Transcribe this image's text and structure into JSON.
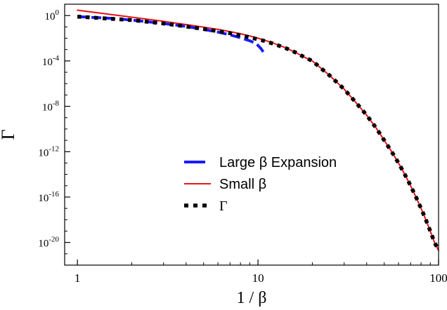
{
  "chart_data": {
    "type": "line",
    "xlabel": "1 / β",
    "ylabel": "Γ",
    "x_scale": "log",
    "y_scale": "log",
    "xlim": [
      0.85,
      100
    ],
    "ylim": [
      1e-22,
      10.0
    ],
    "grid": false,
    "legend_position": "center-right",
    "x_ticks": [
      {
        "value": 1,
        "label": "1"
      },
      {
        "value": 10,
        "label": "10"
      },
      {
        "value": 100,
        "label": "100"
      }
    ],
    "y_ticks": [
      {
        "value": 1,
        "base": "10",
        "exp": "0"
      },
      {
        "value": 0.0001,
        "base": "10",
        "exp": "-4"
      },
      {
        "value": 1e-08,
        "base": "10",
        "exp": "-8"
      },
      {
        "value": 1e-12,
        "base": "10",
        "exp": "-12"
      },
      {
        "value": 1e-16,
        "base": "10",
        "exp": "-16"
      },
      {
        "value": 1e-20,
        "base": "10",
        "exp": "-20"
      }
    ],
    "series": [
      {
        "name": "Large β Expansion",
        "color": "#1a1aff",
        "style": "dashed",
        "x": [
          1,
          1.5,
          2,
          3,
          4,
          5,
          6,
          7,
          8,
          9,
          9.8,
          10.4,
          10.9
        ],
        "y": [
          0.8,
          0.58,
          0.4,
          0.2,
          0.11,
          0.06,
          0.035,
          0.02,
          0.011,
          0.006,
          0.0033,
          0.0012,
          0.0004
        ]
      },
      {
        "name": "Small β",
        "color": "#e8141b",
        "style": "solid",
        "x": [
          1,
          2,
          3,
          4,
          5,
          6,
          7,
          8,
          9,
          10,
          11,
          12,
          14,
          16,
          18,
          20,
          25,
          30,
          35,
          40,
          45,
          50,
          55,
          60,
          65,
          70,
          75,
          80,
          85,
          90,
          95,
          100
        ],
        "y": [
          3,
          0.72,
          0.31,
          0.16,
          0.095,
          0.06,
          0.038,
          0.025,
          0.016,
          0.01,
          0.0063,
          0.004,
          0.0016,
          0.0006,
          0.00022,
          0.0001,
          5e-06,
          3.2e-07,
          2e-08,
          1.6e-09,
          1.3e-10,
          1e-11,
          1e-12,
          1e-13,
          1e-14,
          1e-15,
          1e-16,
          1e-17,
          1e-18,
          1e-19,
          1e-20,
          2e-21
        ]
      },
      {
        "name": "Γ",
        "color": "#000000",
        "style": "dotted",
        "x": [
          1,
          2,
          3,
          4,
          5,
          6,
          7,
          8,
          9,
          10,
          11,
          12,
          14,
          16,
          18,
          20,
          25,
          30,
          35,
          40,
          45,
          50,
          55,
          60,
          65,
          70,
          75,
          80,
          85,
          90,
          95,
          100
        ],
        "y": [
          0.8,
          0.4,
          0.2,
          0.11,
          0.065,
          0.042,
          0.028,
          0.018,
          0.012,
          0.008,
          0.0055,
          0.0035,
          0.0015,
          0.0006,
          0.00022,
          0.0001,
          5e-06,
          3.2e-07,
          2e-08,
          1.6e-09,
          1.3e-10,
          1e-11,
          1e-12,
          1e-13,
          1e-14,
          1e-15,
          1e-16,
          1e-17,
          1e-18,
          1e-19,
          1e-20,
          2e-21
        ]
      }
    ]
  }
}
